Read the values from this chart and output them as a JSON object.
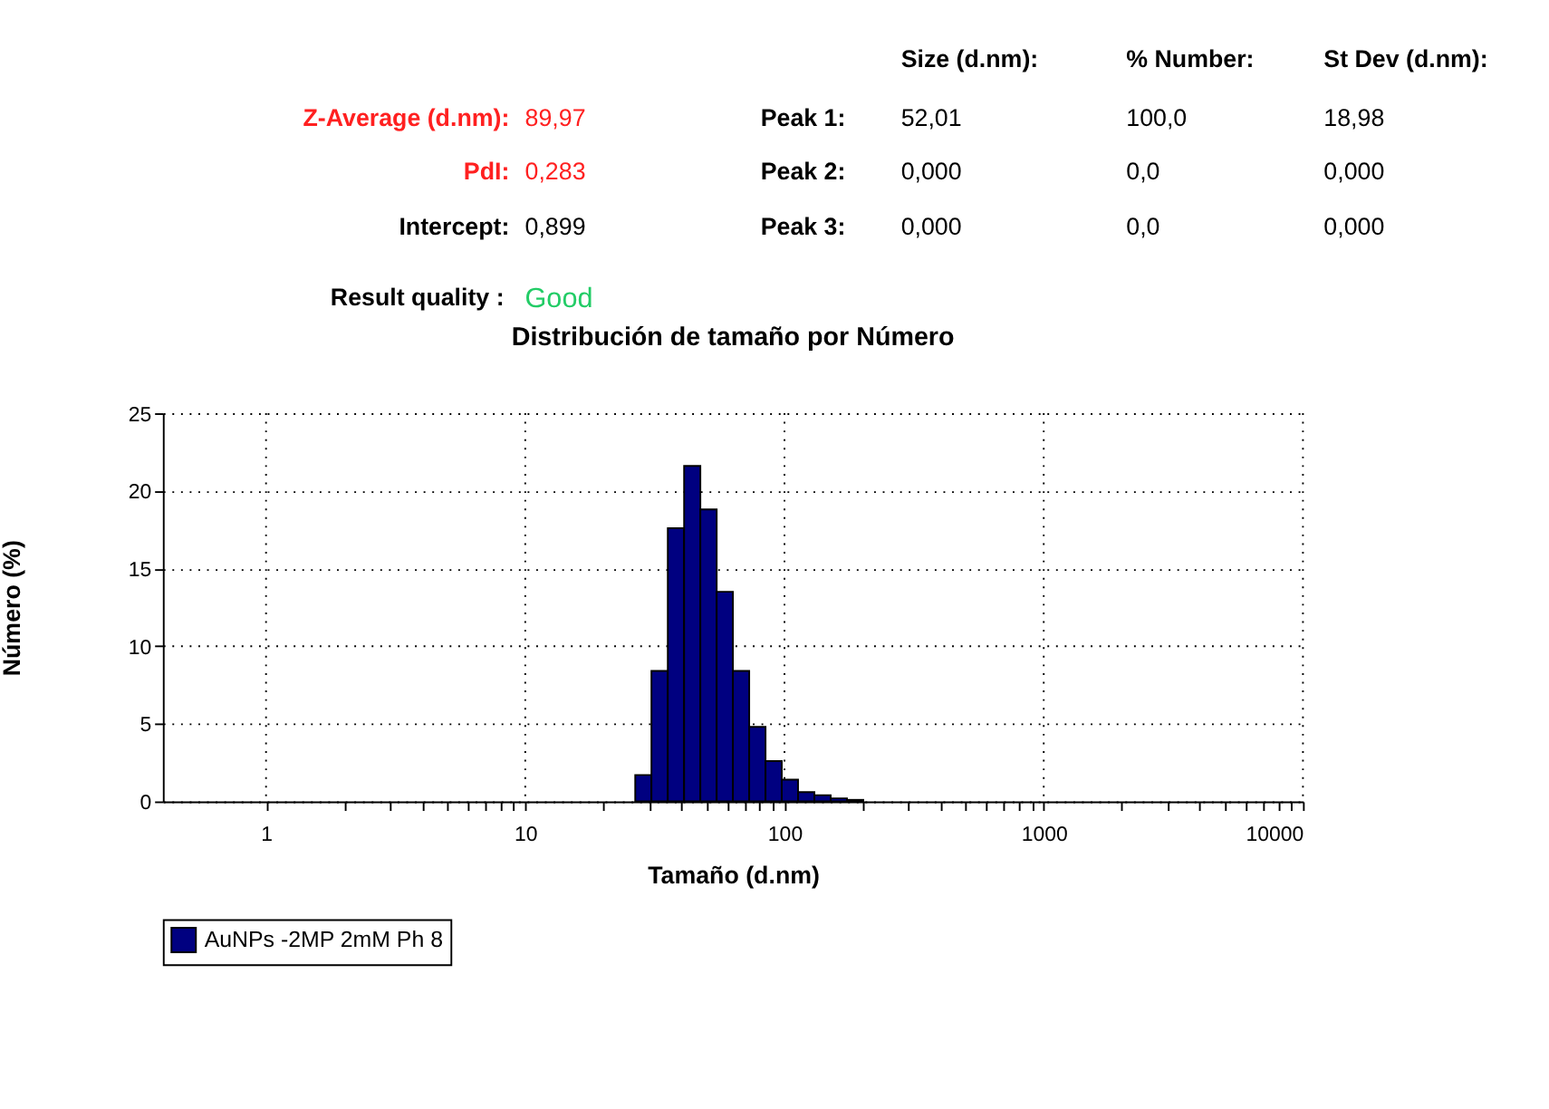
{
  "chart_data": {
    "type": "histogram",
    "title": "Distribución de tamaño por Número",
    "xlabel": "Tamaño (d.nm)",
    "ylabel": "Número (%)",
    "annotations": [
      "Size (d.nm):",
      "% Number:",
      "St Dev (d.nm):",
      "Z-Average (d.nm):",
      "89,97",
      "Peak 1:",
      "52,01",
      "100,0",
      "18,98",
      "PdI:",
      "0,283",
      "Peak 2:",
      "0,000",
      "0,0",
      "0,000",
      "Intercept:",
      "0,899",
      "Peak 3:",
      "0,000",
      "0,0",
      "0,000",
      "Result quality :",
      "Good"
    ],
    "bins": [
      26.56,
      30.67,
      35.47,
      41.0,
      47.36,
      54.75,
      63.25,
      73.1,
      84.5,
      97.6,
      112.8,
      130.4,
      150.7,
      174.2,
      201.3
    ],
    "series": [
      {
        "name": "AuNPs -2MP 2mM Ph 8",
        "color": "#000080",
        "values": [
          1.7,
          8.4,
          17.6,
          21.6,
          18.8,
          13.5,
          8.4,
          4.8,
          2.6,
          1.4,
          0.6,
          0.4,
          0.2,
          0.1
        ]
      }
    ],
    "log": "x",
    "xlim": [
      0.4,
      10000
    ],
    "xticks": [
      1,
      {
        "value": 2,
        "label": null
      },
      {
        "value": 3,
        "label": null
      },
      {
        "value": 4,
        "label": null
      },
      {
        "value": 5,
        "label": null
      },
      {
        "value": 6,
        "label": null
      },
      {
        "value": 7,
        "label": null
      },
      {
        "value": 8,
        "label": null
      },
      {
        "value": 9,
        "label": null
      },
      10,
      {
        "value": 20,
        "label": null
      },
      {
        "value": 30,
        "label": null
      },
      {
        "value": 40,
        "label": null
      },
      {
        "value": 50,
        "label": null
      },
      {
        "value": 60,
        "label": null
      },
      {
        "value": 70,
        "label": null
      },
      {
        "value": 80,
        "label": null
      },
      {
        "value": 90,
        "label": null
      },
      100,
      {
        "value": 200,
        "label": null
      },
      {
        "value": 300,
        "label": null
      },
      {
        "value": 400,
        "label": null
      },
      {
        "value": 500,
        "label": null
      },
      {
        "value": 600,
        "label": null
      },
      {
        "value": 700,
        "label": null
      },
      {
        "value": 800,
        "label": null
      },
      {
        "value": 900,
        "label": null
      },
      1000,
      {
        "value": 2000,
        "label": null
      },
      {
        "value": 3000,
        "label": null
      },
      {
        "value": 4000,
        "label": null
      },
      {
        "value": 5000,
        "label": null
      },
      {
        "value": 6000,
        "label": null
      },
      {
        "value": 7000,
        "label": null
      },
      {
        "value": 8000,
        "label": null
      },
      {
        "value": 9000,
        "label": null
      },
      10000
    ],
    "ylim": [
      0,
      25
    ],
    "yticks": [
      0,
      5,
      10,
      15,
      20,
      25
    ],
    "grid": true,
    "legend": "bottom"
  }
}
